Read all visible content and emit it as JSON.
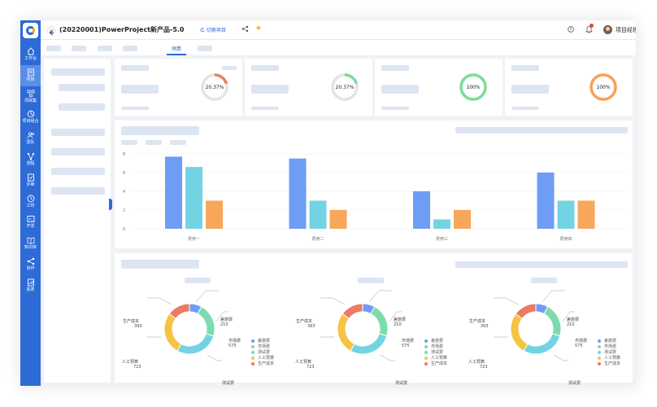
{
  "header": {
    "title": "(20220001)PowerProject新产品-5.0",
    "switch_label": "切换项目",
    "user_name": "项目经理 PM"
  },
  "sidebar": {
    "items": [
      {
        "label": "工作台",
        "icon": "home-icon"
      },
      {
        "label": "项目",
        "icon": "project-icon",
        "active": true
      },
      {
        "label": "项目集",
        "icon": "program-icon"
      },
      {
        "label": "项目组合",
        "icon": "portfolio-icon"
      },
      {
        "label": "团队",
        "icon": "team-icon"
      },
      {
        "label": "流程",
        "icon": "flow-icon"
      },
      {
        "label": "评审",
        "icon": "review-icon"
      },
      {
        "label": "工时",
        "icon": "clock-icon"
      },
      {
        "label": "开发",
        "icon": "dev-icon"
      },
      {
        "label": "知识库",
        "icon": "book-icon"
      },
      {
        "label": "协作",
        "icon": "share-icon"
      },
      {
        "label": "看表",
        "icon": "report-icon"
      }
    ]
  },
  "tabs": {
    "active_label": "预算"
  },
  "kpis": [
    {
      "text": "20.37%",
      "value": 20.37,
      "color": "#ef7d63"
    },
    {
      "text": "20.37%",
      "value": 20.37,
      "color": "#7ddc9a"
    },
    {
      "text": "100%",
      "value": 100,
      "color": "#7ddc9a"
    },
    {
      "text": "100%",
      "value": 100,
      "color": "#f6a356"
    }
  ],
  "chart_data": [
    {
      "type": "bar",
      "categories": [
        "费用一",
        "费用二",
        "费用三",
        "费用四"
      ],
      "series": [
        {
          "values": [
            7.7,
            7.5,
            4.0,
            6.0
          ],
          "color": "#6f9cf5"
        },
        {
          "values": [
            6.6,
            3.0,
            1.0,
            3.0
          ],
          "color": "#72d4e3"
        },
        {
          "values": [
            3.0,
            2.0,
            2.0,
            3.0
          ],
          "color": "#f8a65a"
        }
      ],
      "y_ticks": [
        "0",
        "2",
        "4",
        "6",
        "8"
      ],
      "ylim": [
        0,
        8
      ],
      "grid": true
    },
    {
      "type": "pie",
      "style": "donut",
      "categories": [
        "差旅费",
        "市场费",
        "测试费",
        "人工预算",
        "生产成本"
      ],
      "values": [
        210,
        575,
        755,
        723,
        393
      ],
      "colors": [
        "#6f9cf5",
        "#7ddcac",
        "#72d4e3",
        "#f6c342",
        "#ec7a64"
      ],
      "legend": "right",
      "count": 3
    }
  ]
}
